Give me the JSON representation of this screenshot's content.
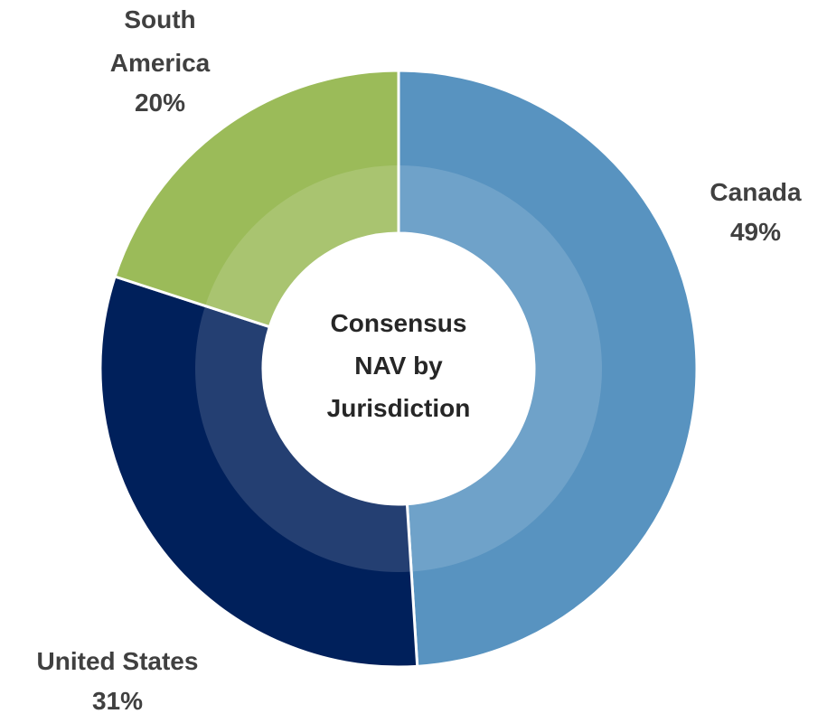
{
  "chart_data": {
    "type": "donut",
    "title": "Consensus NAV by Jurisdiction",
    "categories": [
      "Canada",
      "United States",
      "South America"
    ],
    "values": [
      49,
      31,
      20
    ],
    "value_labels": [
      "49%",
      "31%",
      "20%"
    ],
    "colors": [
      "#5893c0",
      "#00205b",
      "#9bbb59"
    ]
  }
}
